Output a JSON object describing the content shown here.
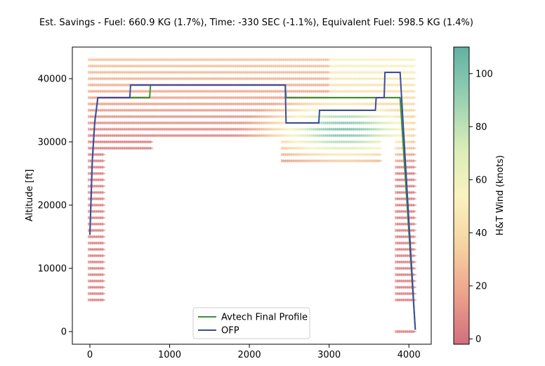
{
  "chart_data": {
    "type": "line",
    "title": "Est. Savings -  Fuel: 660.9 KG (1.7%),  Time: -330 SEC (-1.1%),  Equivalent Fuel: 598.5 KG (1.4%)",
    "xlabel": "",
    "ylabel": "Altitude [ft]",
    "xlim": [
      -220,
      4280
    ],
    "ylim": [
      -2000,
      45000
    ],
    "xticks": [
      0,
      1000,
      2000,
      3000,
      4000
    ],
    "yticks": [
      0,
      10000,
      20000,
      30000,
      40000
    ],
    "grid": false,
    "legend_position": "lower-center",
    "series": [
      {
        "name": "Avtech Final Profile",
        "color": "#3a923a",
        "x": [
          0,
          30,
          60,
          100,
          500,
          510,
          750,
          760,
          2450,
          2460,
          2900,
          2910,
          3580,
          3590,
          3890,
          4080
        ],
        "y": [
          15300,
          27000,
          33000,
          37000,
          37000,
          37000,
          37000,
          39000,
          39000,
          37000,
          37000,
          37000,
          37000,
          37000,
          37000,
          300
        ]
      },
      {
        "name": "OFP",
        "color": "#3b4ca0",
        "x": [
          0,
          30,
          60,
          100,
          500,
          510,
          2450,
          2460,
          2870,
          2880,
          3580,
          3590,
          3690,
          3700,
          3890,
          4080
        ],
        "y": [
          15300,
          27000,
          33000,
          37000,
          37000,
          39000,
          39000,
          33000,
          33000,
          35000,
          35000,
          37000,
          37000,
          41000,
          41000,
          300
        ]
      }
    ],
    "wind_field": {
      "description_cmap": "H&T wind arrows coloured from red (0 knots) through yellow to green (110 knots)",
      "altitude_step": 1000,
      "regions": [
        {
          "x_start": 0,
          "x_end": 4080,
          "alt_min": 31000,
          "alt_max": 43000
        },
        {
          "x_start": 0,
          "x_end": 780,
          "alt_min": 29000,
          "alt_max": 30000
        },
        {
          "x_start": 2420,
          "x_end": 3650,
          "alt_min": 27000,
          "alt_max": 30000
        },
        {
          "x_start": 3850,
          "x_end": 4080,
          "alt_min": 5000,
          "alt_max": 30000
        },
        {
          "x_start": 0,
          "x_end": 180,
          "alt_min": 5000,
          "alt_max": 28000
        },
        {
          "x_start": 3850,
          "x_end": 4080,
          "alt_min": 0,
          "alt_max": 0
        }
      ],
      "hotspot": {
        "x_center": 3200,
        "alt_center": 32000,
        "peak_knots": 100
      }
    },
    "colorbar": {
      "label": "H&T Wind (knots)",
      "min": -2,
      "max": 110,
      "ticks": [
        0,
        20,
        40,
        60,
        80,
        100
      ],
      "colors": [
        "#c64a5e",
        "#e88a6e",
        "#f4c98b",
        "#f8efb0",
        "#cfe7a6",
        "#7bc4a0",
        "#3a9d8c"
      ]
    }
  }
}
